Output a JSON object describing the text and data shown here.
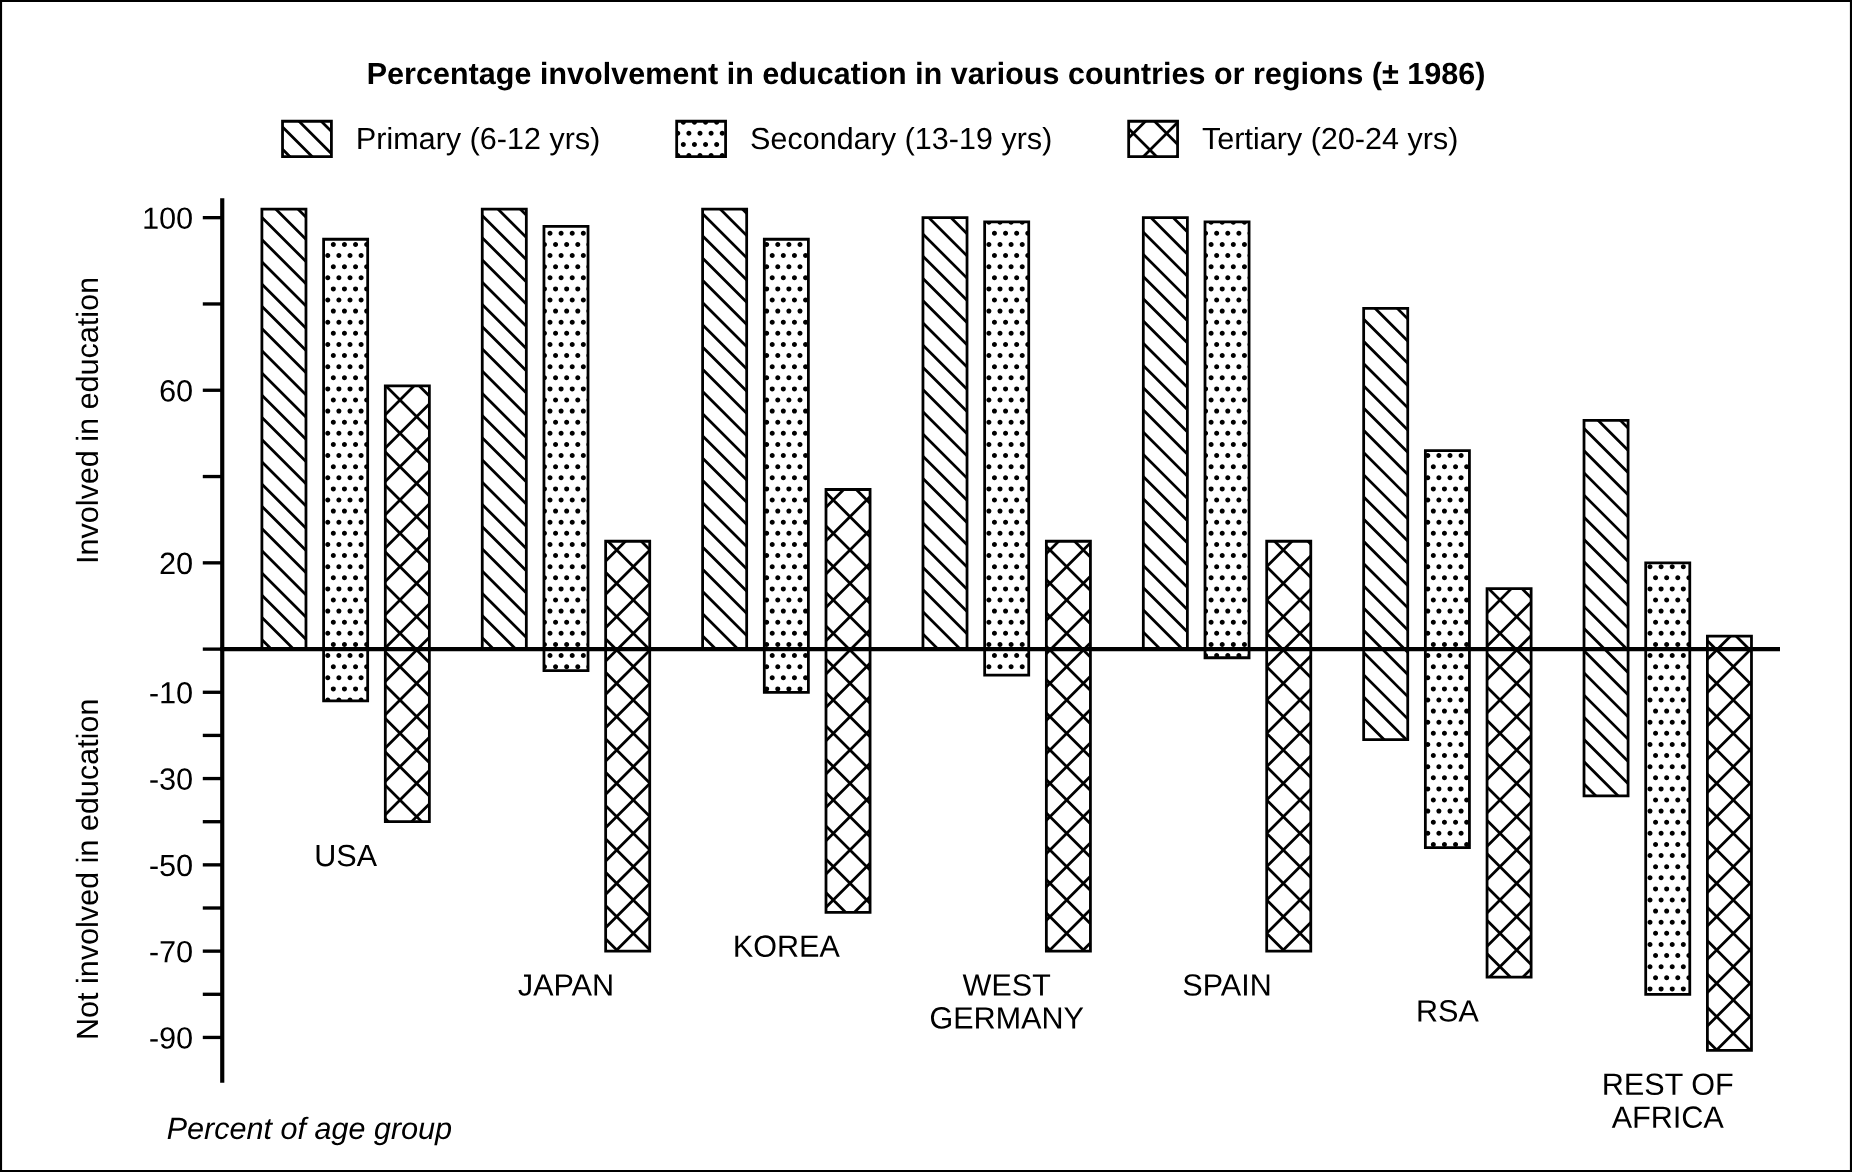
{
  "chart_data": {
    "type": "bar",
    "title": "Percentage involvement in education in various countries or regions (± 1986)",
    "ylabel": "Involved in education",
    "categories": [
      "USA",
      "JAPAN",
      "KOREA",
      "WEST\nGERMANY",
      "SPAIN",
      "RSA",
      "REST OF\nAFRICA"
    ],
    "series": [
      {
        "name": "Primary (6-12 yrs)",
        "color": "#000000",
        "base": [
          0,
          0,
          0,
          0,
          0,
          -21,
          -34
        ],
        "values": [
          102,
          102,
          102,
          100,
          100,
          100,
          87
        ]
      },
      {
        "name": "Secondary (13-19 yrs)",
        "color": "#000000",
        "base": [
          -12,
          -5,
          -10,
          -6,
          -2,
          -46,
          -80
        ],
        "values": [
          107,
          103,
          105,
          105,
          101,
          92,
          100
        ]
      },
      {
        "name": "Tertiary (20-24 yrs)",
        "color": "#000000",
        "base": [
          -40,
          -70,
          -61,
          -70,
          -70,
          -76,
          -93
        ],
        "values": [
          101,
          95,
          98,
          95,
          95,
          90,
          96
        ]
      }
    ],
    "ylim": [
      -100,
      104
    ],
    "yticks": [
      100,
      {
        "value": 80,
        "label": null
      },
      60,
      {
        "value": 40,
        "label": null
      },
      20,
      {
        "value": 0,
        "label": null
      },
      -10,
      {
        "value": -20,
        "label": null
      },
      -30,
      {
        "value": -40,
        "label": null
      },
      -50,
      {
        "value": -60,
        "label": null
      },
      -70,
      {
        "value": -80,
        "label": null
      },
      -90
    ],
    "legend": "top",
    "annotations": [
      "Not involved in education",
      "Percent of age group"
    ]
  }
}
